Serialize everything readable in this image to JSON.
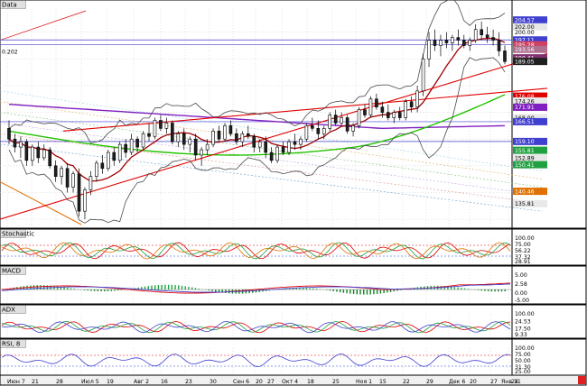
{
  "colors": {
    "background": "#ffffff",
    "grid": "#c8c8c8",
    "bull_candle": "#ffffff",
    "bear_candle": "#202020",
    "bollinger": "#4a4a4a",
    "trend_channel": "#e00000",
    "ma_green": "#22c400",
    "ma_purple": "#8020c0",
    "ma_red": "#a00000",
    "ma_orange": "#e07000",
    "hline_blue": "#4040d0"
  },
  "chart_data": [
    {
      "type": "candlestick",
      "pane": "Data",
      "title": "Data",
      "left_label": "0.202",
      "ylim": [
        128,
        208
      ],
      "x_tick_labels": [
        "Июн 7",
        "21",
        "28",
        "Июл 5",
        "19",
        "Авг 2",
        "16",
        "23",
        "30",
        "Сен 6",
        "20",
        "27",
        "Окт 4",
        "18",
        "25",
        "Ноя 1",
        "15",
        "22",
        "29",
        "Дек 6",
        "20",
        "27",
        "Янв 11",
        "24"
      ],
      "price_labels": [
        {
          "text": "204.57",
          "value": 204.57,
          "bg": "#4040d0"
        },
        {
          "text": "202.00",
          "value": 202.0,
          "bg": "#e8e8e8"
        },
        {
          "text": "200.00",
          "value": 200.0,
          "bg": "none"
        },
        {
          "text": "197.11",
          "value": 197.11,
          "bg": "#4040d0"
        },
        {
          "text": "195.28",
          "value": 195.28,
          "bg": "#d04060"
        },
        {
          "text": "193.56",
          "value": 193.56,
          "bg": "#b07090"
        },
        {
          "text": "190.41",
          "value": 190.41,
          "bg": "#803070"
        },
        {
          "text": "189.05",
          "value": 189.05,
          "bg": "#202020"
        },
        {
          "text": "176.08",
          "value": 176.08,
          "bg": "#e00000"
        },
        {
          "text": "174.26",
          "value": 174.26,
          "bg": "#e8e8e8"
        },
        {
          "text": "171.91",
          "value": 171.91,
          "bg": "#8020c0"
        },
        {
          "text": "168.00",
          "value": 168.0,
          "bg": "#e8e8e8"
        },
        {
          "text": "166.51",
          "value": 166.51,
          "bg": "#4040d0"
        },
        {
          "text": "159.10",
          "value": 159.1,
          "bg": "#4040d0"
        },
        {
          "text": "155.81",
          "value": 155.81,
          "bg": "#20a040"
        },
        {
          "text": "152.89",
          "value": 152.89,
          "bg": "#e8e8e8"
        },
        {
          "text": "150.41",
          "value": 150.41,
          "bg": "#20a040"
        },
        {
          "text": "140.46",
          "value": 140.46,
          "bg": "#e07000"
        },
        {
          "text": "135.81",
          "value": 135.81,
          "bg": "#e8e8e8"
        }
      ],
      "hlines": [
        197.11,
        195.28,
        166.51,
        159.1
      ],
      "trend_channel": [
        [
          0,
          130
        ],
        [
          128,
          190
        ],
        [
          0,
          145
        ],
        [
          128,
          175
        ]
      ],
      "candles": [
        [
          164,
          167,
          158,
          160
        ],
        [
          160,
          162,
          155,
          157
        ],
        [
          157,
          161,
          153,
          159
        ],
        [
          159,
          160,
          150,
          152
        ],
        [
          152,
          158,
          150,
          157
        ],
        [
          157,
          159,
          151,
          153
        ],
        [
          153,
          158,
          152,
          156
        ],
        [
          156,
          157,
          149,
          150
        ],
        [
          150,
          152,
          144,
          146
        ],
        [
          146,
          150,
          143,
          149
        ],
        [
          149,
          151,
          140,
          142
        ],
        [
          142,
          148,
          140,
          147
        ],
        [
          147,
          149,
          131,
          133
        ],
        [
          133,
          142,
          130,
          141
        ],
        [
          141,
          148,
          139,
          146
        ],
        [
          146,
          152,
          144,
          151
        ],
        [
          151,
          154,
          147,
          149
        ],
        [
          149,
          156,
          148,
          155
        ],
        [
          155,
          157,
          150,
          152
        ],
        [
          152,
          159,
          151,
          158
        ],
        [
          158,
          160,
          153,
          155
        ],
        [
          155,
          162,
          154,
          160
        ],
        [
          160,
          161,
          155,
          157
        ],
        [
          157,
          163,
          156,
          162
        ],
        [
          162,
          166,
          159,
          161
        ],
        [
          161,
          168,
          160,
          167
        ],
        [
          167,
          169,
          163,
          164
        ],
        [
          164,
          168,
          162,
          166
        ],
        [
          166,
          167,
          158,
          159
        ],
        [
          159,
          163,
          157,
          162
        ],
        [
          162,
          164,
          156,
          158
        ],
        [
          158,
          161,
          155,
          160
        ],
        [
          160,
          162,
          152,
          154
        ],
        [
          154,
          157,
          150,
          156
        ],
        [
          156,
          160,
          154,
          158
        ],
        [
          158,
          164,
          157,
          163
        ],
        [
          163,
          165,
          159,
          160
        ],
        [
          160,
          166,
          159,
          165
        ],
        [
          165,
          167,
          161,
          162
        ],
        [
          162,
          164,
          158,
          159
        ],
        [
          159,
          163,
          157,
          162
        ],
        [
          162,
          165,
          160,
          161
        ],
        [
          161,
          162,
          155,
          157
        ],
        [
          157,
          160,
          155,
          159
        ],
        [
          159,
          161,
          153,
          155
        ],
        [
          155,
          157,
          151,
          152
        ],
        [
          152,
          158,
          151,
          157
        ],
        [
          157,
          159,
          154,
          155
        ],
        [
          155,
          160,
          154,
          159
        ],
        [
          159,
          162,
          156,
          158
        ],
        [
          158,
          161,
          156,
          160
        ],
        [
          160,
          166,
          159,
          165
        ],
        [
          165,
          168,
          163,
          164
        ],
        [
          164,
          167,
          160,
          162
        ],
        [
          162,
          165,
          160,
          164
        ],
        [
          164,
          170,
          163,
          169
        ],
        [
          169,
          171,
          165,
          166
        ],
        [
          166,
          170,
          165,
          168
        ],
        [
          168,
          169,
          162,
          163
        ],
        [
          163,
          166,
          161,
          165
        ],
        [
          165,
          172,
          164,
          171
        ],
        [
          171,
          173,
          168,
          169
        ],
        [
          169,
          176,
          168,
          175
        ],
        [
          175,
          177,
          171,
          172
        ],
        [
          172,
          174,
          168,
          170
        ],
        [
          170,
          173,
          167,
          168
        ],
        [
          168,
          171,
          166,
          170
        ],
        [
          170,
          172,
          167,
          168
        ],
        [
          168,
          175,
          167,
          174
        ],
        [
          174,
          176,
          170,
          172
        ],
        [
          172,
          180,
          170,
          178
        ],
        [
          178,
          192,
          176,
          190
        ],
        [
          190,
          200,
          187,
          197
        ],
        [
          197,
          201,
          193,
          195
        ],
        [
          195,
          199,
          191,
          197
        ],
        [
          197,
          200,
          194,
          196
        ],
        [
          196,
          199,
          193,
          198
        ],
        [
          198,
          201,
          195,
          197
        ],
        [
          197,
          199,
          194,
          195
        ],
        [
          195,
          198,
          193,
          197
        ],
        [
          197,
          203,
          196,
          201
        ],
        [
          201,
          204,
          197,
          199
        ],
        [
          199,
          202,
          196,
          198
        ],
        [
          198,
          201,
          195,
          197
        ],
        [
          197,
          200,
          191,
          193
        ],
        [
          193,
          195,
          188,
          189
        ]
      ],
      "series": [
        {
          "name": "BB Upper",
          "color": "#4a4a4a"
        },
        {
          "name": "BB Lower",
          "color": "#4a4a4a"
        },
        {
          "name": "MA Red",
          "color": "#a00000"
        },
        {
          "name": "MA Green",
          "color": "#22c400"
        },
        {
          "name": "MA Purple",
          "color": "#8020c0"
        }
      ]
    },
    {
      "type": "line",
      "pane": "Stochastic",
      "title": "Stochastic",
      "ylim": [
        0,
        100
      ],
      "levels": [
        75,
        25
      ],
      "axis_labels": [
        "100.00",
        "75.00",
        "56.22",
        "37.32",
        "28.91"
      ]
    },
    {
      "type": "bar",
      "pane": "MACD",
      "title": "MACD",
      "ylim": [
        -5,
        5
      ],
      "axis_labels": [
        "5.00",
        "2.58",
        "0.00",
        "-5.00"
      ]
    },
    {
      "type": "line",
      "pane": "ADX",
      "title": "ADX",
      "ylim": [
        0,
        100
      ],
      "axis_labels": [
        "100.00",
        "24.53",
        "17.50",
        "9.33"
      ]
    },
    {
      "type": "line",
      "pane": "RSI, 8",
      "title": "RSI, 8",
      "ylim": [
        0,
        100
      ],
      "levels": [
        75,
        25
      ],
      "axis_labels": [
        "100.00",
        "75.00",
        "50.00",
        "31.30",
        "25.00"
      ]
    }
  ]
}
